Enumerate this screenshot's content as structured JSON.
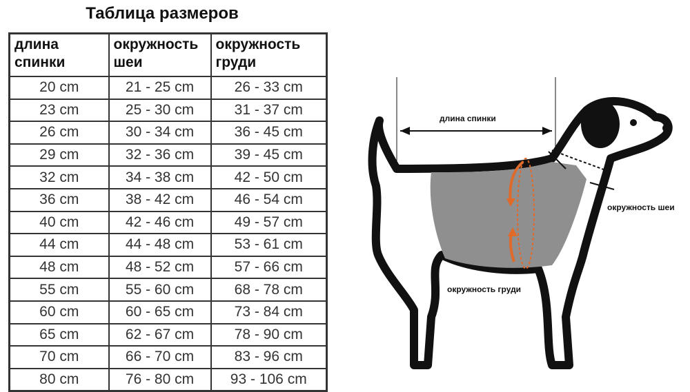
{
  "title": "Таблица размеров",
  "table": {
    "headers": [
      "длина спинки",
      "окружность шеи",
      "окружность груди"
    ],
    "rows": [
      [
        "20 cm",
        "21 - 25 cm",
        "26 - 33 cm"
      ],
      [
        "23 cm",
        "25 - 30 cm",
        "31 - 37 cm"
      ],
      [
        "26 cm",
        "30 - 34 cm",
        "36 - 45 cm"
      ],
      [
        "29 cm",
        "32 - 36 cm",
        "39 - 45 cm"
      ],
      [
        "32 cm",
        "34 - 38 cm",
        "42 - 50 cm"
      ],
      [
        "36 cm",
        "38 - 42 cm",
        "46 - 54 cm"
      ],
      [
        "40 cm",
        "42 - 46 cm",
        "49 - 57 cm"
      ],
      [
        "44 cm",
        "44 - 48 cm",
        "53 - 61 cm"
      ],
      [
        "48 cm",
        "48 - 52 cm",
        "57 - 66 cm"
      ],
      [
        "55 cm",
        "55 - 60 cm",
        "68 - 78 cm"
      ],
      [
        "60 cm",
        "60 - 65 cm",
        "73 - 84 cm"
      ],
      [
        "65 cm",
        "62 - 67 cm",
        "78 - 90 cm"
      ],
      [
        "70 cm",
        "66 - 70 cm",
        "83 - 96 cm"
      ],
      [
        "80 cm",
        "76 - 80 cm",
        "93 - 106 cm"
      ]
    ]
  },
  "diagram": {
    "back_length_label": "длина спинки",
    "neck_label": "окружность шеи",
    "chest_label": "окружность груди",
    "accent_color": "#e06a2a",
    "vest_color": "#8f8f8f"
  }
}
